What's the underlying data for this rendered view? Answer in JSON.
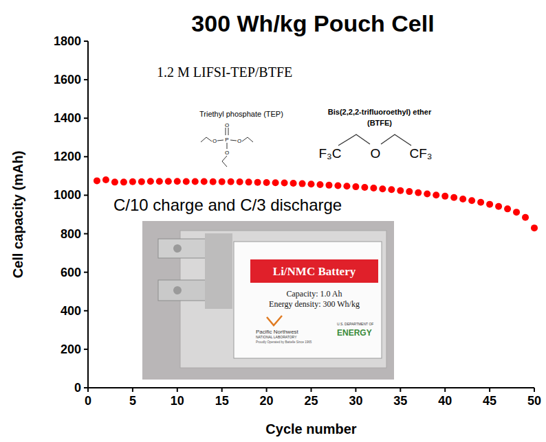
{
  "chart_data": {
    "type": "scatter",
    "title": "300 Wh/kg Pouch Cell",
    "x_label": "Cycle number",
    "y_label": "Cell capacity (mAh)",
    "x": [
      1,
      2,
      3,
      4,
      5,
      6,
      7,
      8,
      9,
      10,
      11,
      12,
      13,
      14,
      15,
      16,
      17,
      18,
      19,
      20,
      21,
      22,
      23,
      24,
      25,
      26,
      27,
      28,
      29,
      30,
      31,
      32,
      33,
      34,
      35,
      36,
      37,
      38,
      39,
      40,
      41,
      42,
      43,
      44,
      45,
      46,
      47,
      48,
      49,
      50
    ],
    "series": [
      {
        "color": "#ff0000",
        "marker": "circle",
        "values": [
          1075,
          1080,
          1068,
          1068,
          1070,
          1070,
          1072,
          1072,
          1072,
          1072,
          1071,
          1071,
          1071,
          1070,
          1070,
          1070,
          1069,
          1068,
          1067,
          1066,
          1065,
          1064,
          1062,
          1060,
          1058,
          1055,
          1052,
          1050,
          1047,
          1044,
          1041,
          1037,
          1033,
          1029,
          1024,
          1019,
          1013,
          1007,
          1001,
          995,
          988,
          980,
          972,
          963,
          953,
          942,
          929,
          912,
          885,
          830
        ]
      }
    ],
    "xlim": [
      0,
      50
    ],
    "xticks": [
      0,
      5,
      10,
      15,
      20,
      25,
      30,
      35,
      40,
      45,
      50
    ],
    "ylim": [
      0,
      1800
    ],
    "yticks": [
      0,
      200,
      400,
      600,
      800,
      1000,
      1200,
      1400,
      1600,
      1800
    ],
    "grid": false,
    "annotations": [
      "1.2 M LIFSI-TEP/BTFE",
      "C/10 charge and C/3 discharge"
    ],
    "molecules": [
      {
        "name": "Triethyl phosphate (TEP)",
        "atoms": [
          "P",
          "O",
          "O",
          "O",
          "O"
        ]
      },
      {
        "name": "Bis(2,2,2-trifluoroethyl) ether",
        "abbreviation": "(BTFE)",
        "atoms": [
          "F₃C",
          "O",
          "CF₃"
        ]
      }
    ],
    "photo": {
      "label_title": "Li/NMC Battery",
      "lines": [
        "Capacity: 1.0 Ah",
        "Energy density: 300 Wh/kg"
      ],
      "logos": [
        "Pacific Northwest",
        "NATIONAL LABORATORY",
        "Proudly Operated by Battelle Since 1965",
        "U.S. DEPARTMENT OF",
        "ENERGY"
      ]
    }
  }
}
